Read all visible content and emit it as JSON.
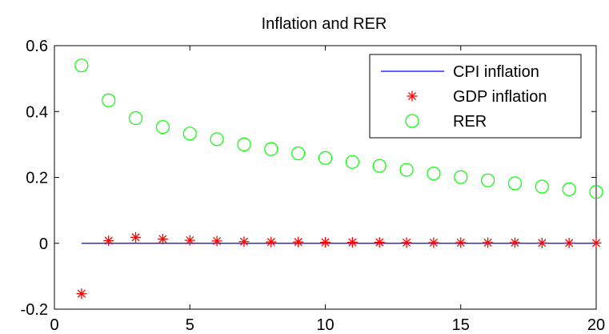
{
  "chart_data": {
    "type": "line",
    "title": "Inflation and RER",
    "xlabel": "",
    "ylabel": "",
    "xlim": [
      0,
      20
    ],
    "ylim": [
      -0.2,
      0.6
    ],
    "x_ticks": [
      "0",
      "5",
      "10",
      "15",
      "20"
    ],
    "y_ticks": [
      "-0.2",
      "0",
      "0.2",
      "0.4",
      "0.6"
    ],
    "grid": false,
    "legend_position": "top-right",
    "x": [
      1,
      2,
      3,
      4,
      5,
      6,
      7,
      8,
      9,
      10,
      11,
      12,
      13,
      14,
      15,
      16,
      17,
      18,
      19,
      20
    ],
    "series": [
      {
        "name": "CPI inflation",
        "style": "line",
        "color": "#0000ff",
        "values": [
          0,
          0,
          0,
          0,
          0,
          0,
          0,
          0,
          0,
          0,
          0,
          0,
          0,
          0,
          0,
          0,
          0,
          0,
          0,
          0
        ]
      },
      {
        "name": "GDP inflation",
        "style": "asterisk",
        "color": "#ff0000",
        "values": [
          -0.153,
          0.008,
          0.018,
          0.013,
          0.009,
          0.007,
          0.005,
          0.004,
          0.004,
          0.003,
          0.003,
          0.003,
          0.002,
          0.002,
          0.002,
          0.002,
          0.002,
          0.001,
          0.001,
          0.001
        ]
      },
      {
        "name": "RER",
        "style": "circle",
        "color": "#00ff00",
        "values": [
          0.54,
          0.434,
          0.38,
          0.353,
          0.333,
          0.316,
          0.3,
          0.286,
          0.273,
          0.259,
          0.247,
          0.235,
          0.223,
          0.212,
          0.201,
          0.191,
          0.182,
          0.172,
          0.164,
          0.156
        ]
      }
    ]
  }
}
